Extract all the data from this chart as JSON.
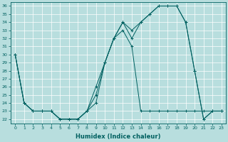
{
  "xlabel": "Humidex (Indice chaleur)",
  "bg_color": "#b8dede",
  "line_color": "#006060",
  "grid_color": "#ffffff",
  "xlim": [
    -0.5,
    23.5
  ],
  "ylim": [
    21.5,
    36.5
  ],
  "xticks": [
    0,
    1,
    2,
    3,
    4,
    5,
    6,
    7,
    8,
    9,
    10,
    11,
    12,
    13,
    14,
    15,
    16,
    17,
    18,
    19,
    20,
    21,
    22,
    23
  ],
  "yticks": [
    22,
    23,
    24,
    25,
    26,
    27,
    28,
    29,
    30,
    31,
    32,
    33,
    34,
    35,
    36
  ],
  "s1_x": [
    0,
    1,
    2,
    3,
    4,
    5,
    6,
    7,
    8,
    9,
    10,
    11,
    12,
    13,
    14,
    15,
    16,
    17,
    18,
    19,
    20,
    21,
    22,
    23
  ],
  "s1_y": [
    30,
    24,
    23,
    23,
    23,
    22,
    22,
    22,
    23,
    24,
    29,
    32,
    33,
    31,
    23,
    23,
    23,
    23,
    23,
    23,
    23,
    23,
    23,
    23
  ],
  "s2_x": [
    0,
    1,
    2,
    3,
    4,
    5,
    6,
    7,
    8,
    9,
    10,
    11,
    12,
    13,
    14,
    15,
    16,
    17,
    18,
    19,
    20,
    21,
    22,
    23
  ],
  "s2_y": [
    30,
    24,
    23,
    23,
    23,
    22,
    22,
    22,
    23,
    25,
    29,
    32,
    34,
    32,
    34,
    35,
    36,
    36,
    36,
    34,
    28,
    22,
    23,
    23
  ],
  "s3_x": [
    0,
    1,
    2,
    3,
    4,
    5,
    6,
    7,
    8,
    9,
    10,
    11,
    12,
    13,
    14,
    15,
    16,
    17,
    18,
    19,
    20,
    21,
    22,
    23
  ],
  "s3_y": [
    30,
    24,
    23,
    23,
    23,
    22,
    22,
    22,
    23,
    26,
    29,
    32,
    34,
    33,
    34,
    35,
    36,
    36,
    36,
    34,
    28,
    22,
    23,
    23
  ]
}
